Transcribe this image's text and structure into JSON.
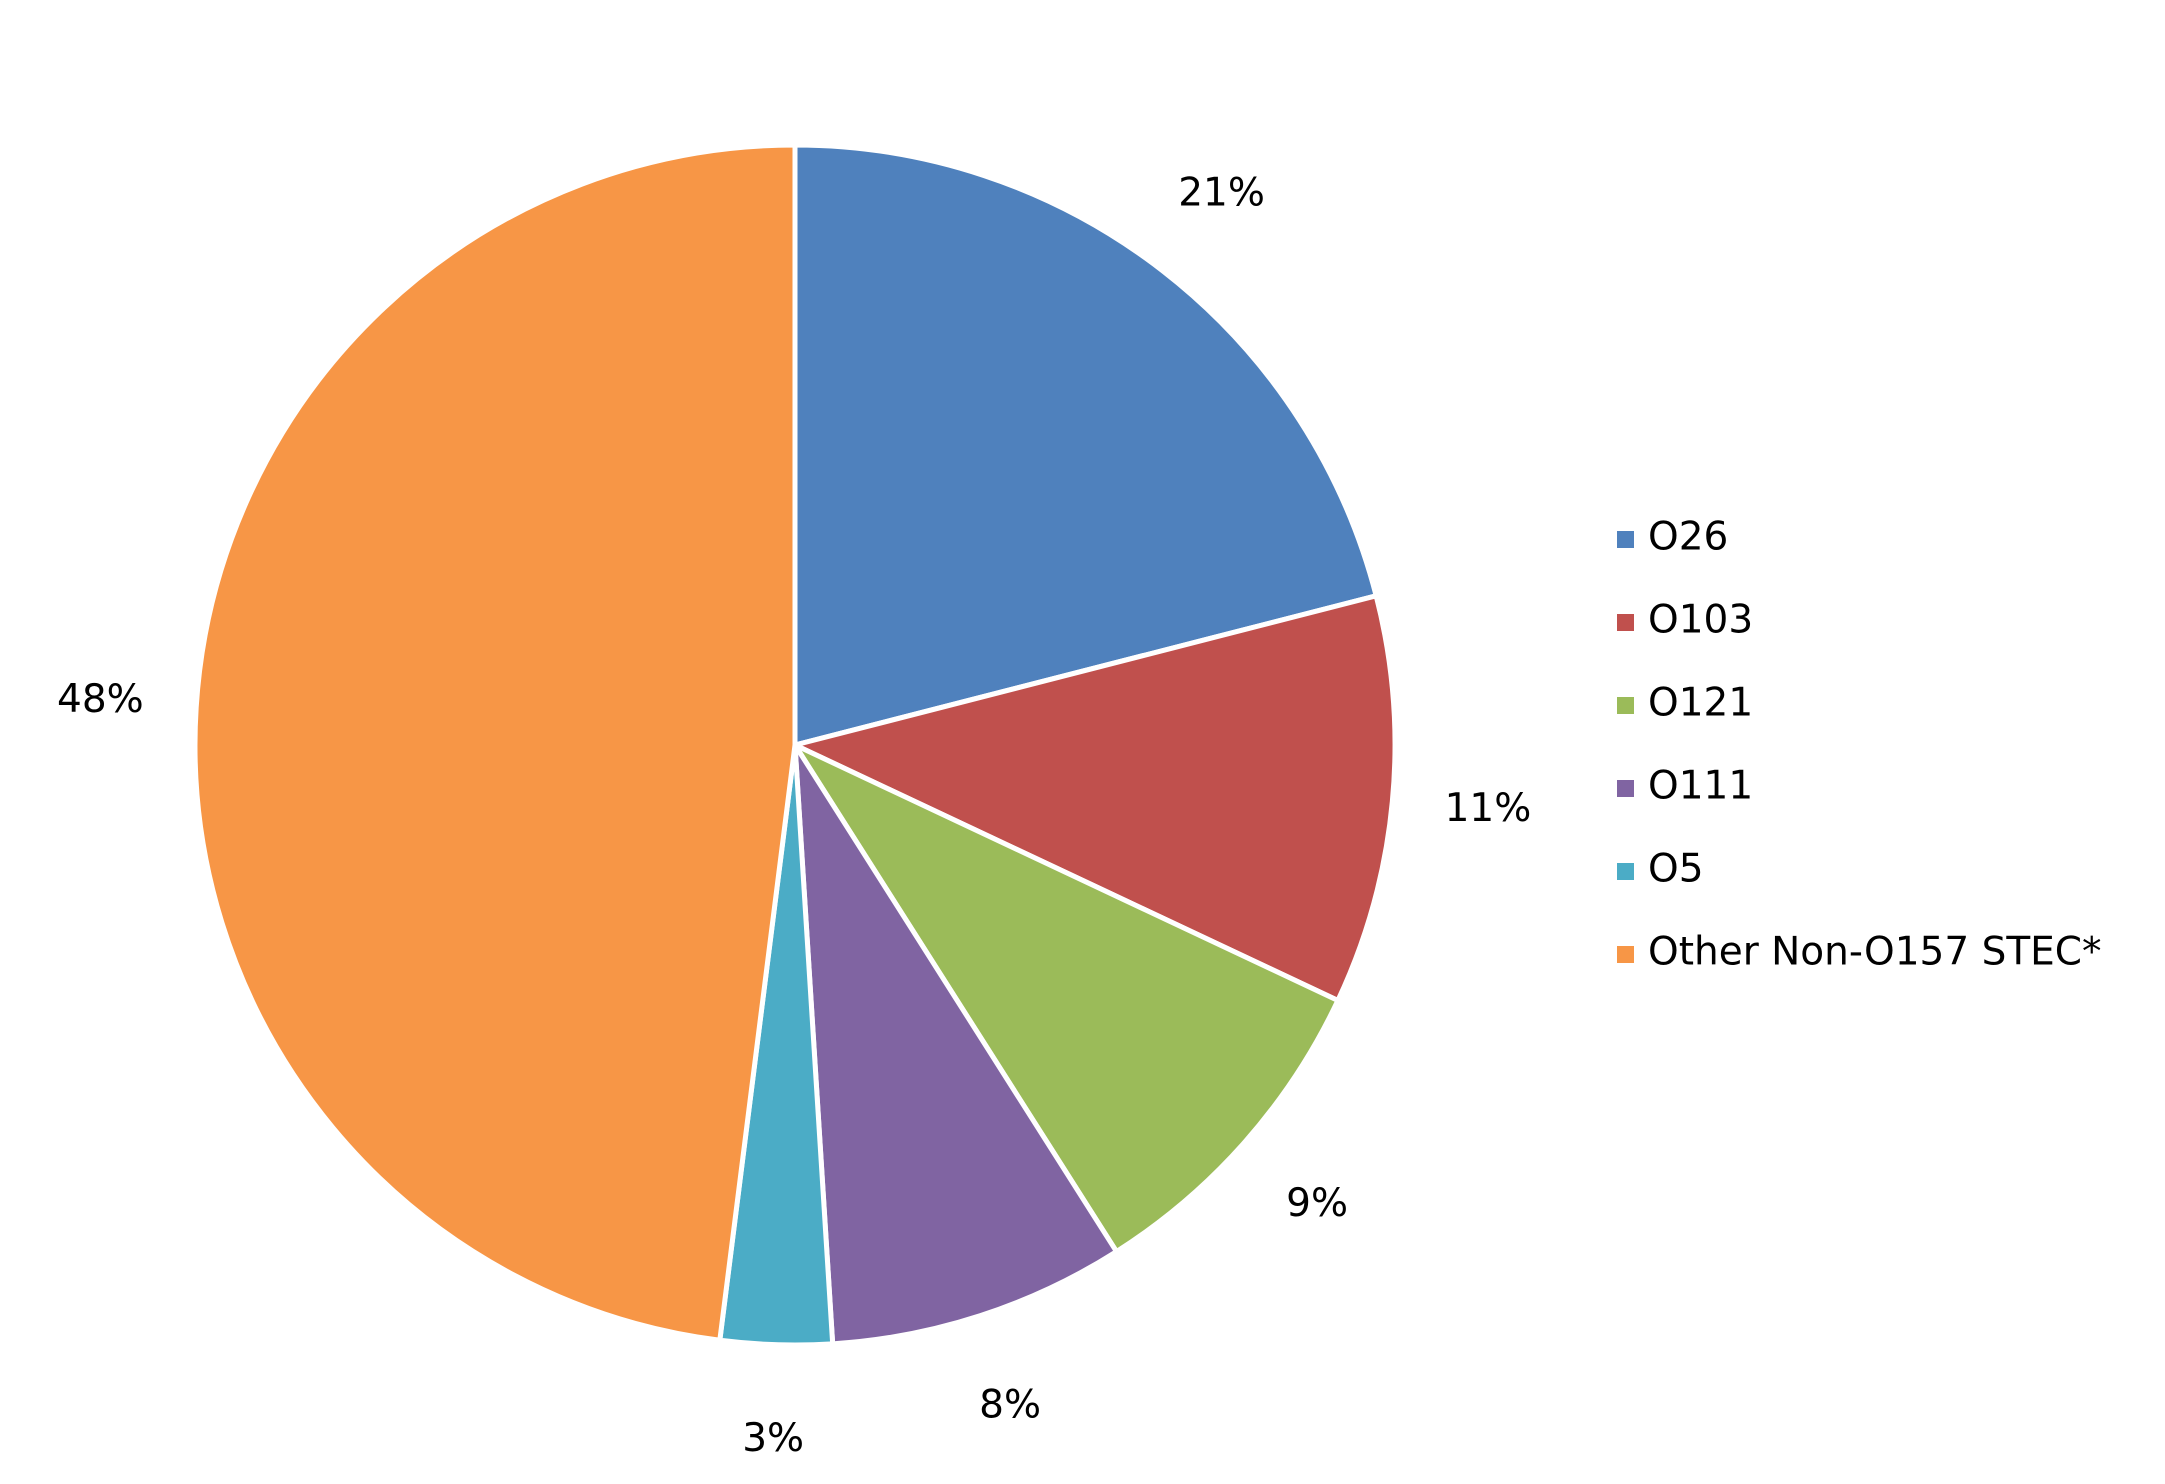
{
  "chart_data": {
    "type": "pie",
    "categories": [
      "O26",
      "O103",
      "O121",
      "O111",
      "O5",
      "Other Non-O157 STEC*"
    ],
    "values": [
      21,
      11,
      9,
      8,
      3,
      48
    ],
    "value_labels": [
      "21%",
      "11%",
      "9%",
      "8%",
      "3%",
      "48%"
    ],
    "colors": [
      "#4f81bd",
      "#c0504d",
      "#9bbb59",
      "#8064a2",
      "#4bacc6",
      "#f79646"
    ],
    "legend": "right"
  }
}
